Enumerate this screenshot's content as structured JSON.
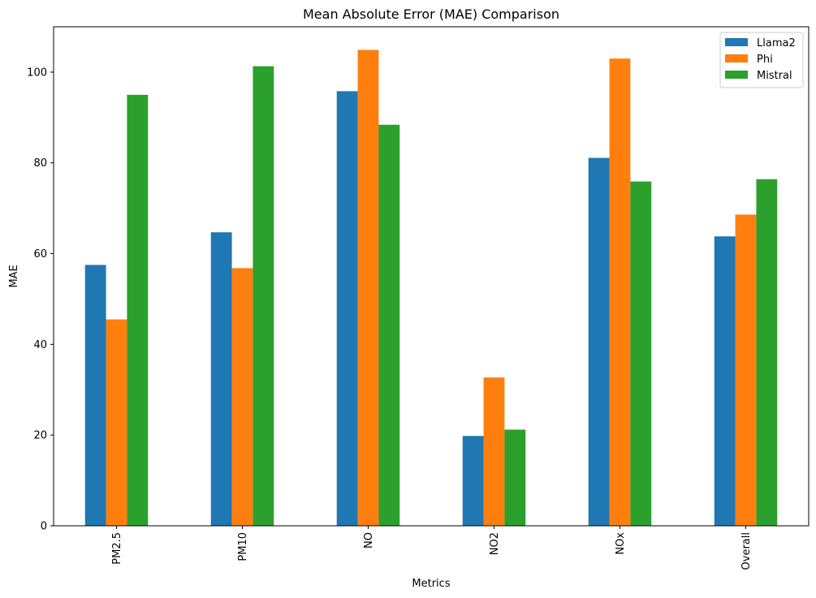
{
  "chart_data": {
    "type": "bar",
    "title": "Mean Absolute Error (MAE) Comparison",
    "xlabel": "Metrics",
    "ylabel": "MAE",
    "categories": [
      "PM2.5",
      "PM10",
      "NO",
      "NO2",
      "NOx",
      "Overall"
    ],
    "series": [
      {
        "name": "Llama2",
        "color": "#1f77b4",
        "values": [
          57.5,
          64.7,
          95.8,
          19.8,
          81.1,
          63.8
        ]
      },
      {
        "name": "Phi",
        "color": "#ff7f0e",
        "values": [
          45.5,
          56.8,
          104.9,
          32.7,
          103.0,
          68.6
        ]
      },
      {
        "name": "Mistral",
        "color": "#2ca02c",
        "values": [
          95.0,
          101.3,
          88.4,
          21.2,
          75.9,
          76.4
        ]
      }
    ],
    "ylim": [
      0,
      110
    ],
    "yticks": [
      0,
      20,
      40,
      60,
      80,
      100
    ],
    "grid": false,
    "legend_position": "top-right"
  }
}
